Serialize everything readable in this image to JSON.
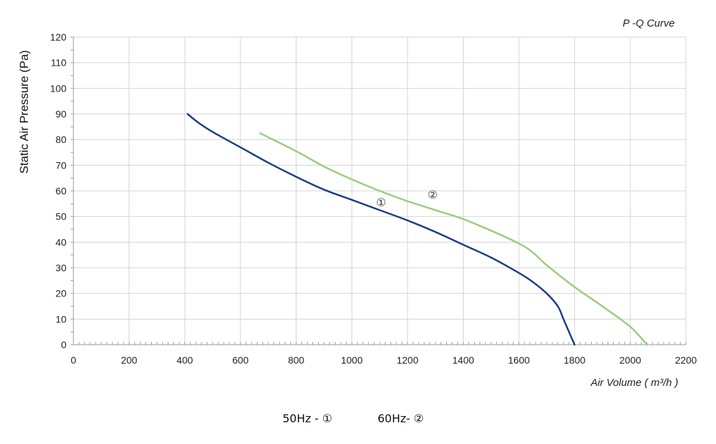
{
  "chart_data": {
    "type": "line",
    "title": "P -Q Curve",
    "xlabel": "Air Volume ( m³/h )",
    "ylabel": "Static Air Pressure  (Pa)",
    "xlim": [
      0,
      2200
    ],
    "ylim": [
      0,
      120
    ],
    "x_ticks": [
      "0",
      "200",
      "400",
      "600",
      "800",
      "1000",
      "1200",
      "1400",
      "1600",
      "1800",
      "2000",
      "2200"
    ],
    "y_ticks": [
      "0",
      "10",
      "20",
      "30",
      "40",
      "50",
      "60",
      "70",
      "80",
      "90",
      "100",
      "110",
      "120"
    ],
    "grid": true,
    "series": [
      {
        "name": "①",
        "color": "#1a3e84",
        "label_at": [
          1105,
          54
        ],
        "points": [
          [
            410,
            90
          ],
          [
            450,
            86.5
          ],
          [
            500,
            83
          ],
          [
            600,
            77
          ],
          [
            700,
            71
          ],
          [
            800,
            65.5
          ],
          [
            900,
            60.5
          ],
          [
            1000,
            56.5
          ],
          [
            1100,
            52.5
          ],
          [
            1200,
            48.5
          ],
          [
            1300,
            44
          ],
          [
            1400,
            39
          ],
          [
            1500,
            34
          ],
          [
            1600,
            28
          ],
          [
            1650,
            24.5
          ],
          [
            1700,
            20
          ],
          [
            1740,
            15
          ],
          [
            1760,
            10
          ],
          [
            1780,
            5
          ],
          [
            1800,
            0
          ]
        ]
      },
      {
        "name": "②",
        "color": "#9ccc7e",
        "label_at": [
          1290,
          57
        ],
        "points": [
          [
            670,
            82.5
          ],
          [
            800,
            75.5
          ],
          [
            900,
            69.5
          ],
          [
            1000,
            64.5
          ],
          [
            1100,
            60
          ],
          [
            1200,
            56
          ],
          [
            1300,
            52.5
          ],
          [
            1400,
            49
          ],
          [
            1500,
            44.5
          ],
          [
            1600,
            39.5
          ],
          [
            1650,
            36
          ],
          [
            1700,
            31
          ],
          [
            1800,
            22.5
          ],
          [
            1900,
            15
          ],
          [
            2000,
            7
          ],
          [
            2060,
            0
          ]
        ]
      }
    ],
    "legend": [
      {
        "label": "50Hz -  ①"
      },
      {
        "label": "60Hz-  ②"
      }
    ]
  }
}
